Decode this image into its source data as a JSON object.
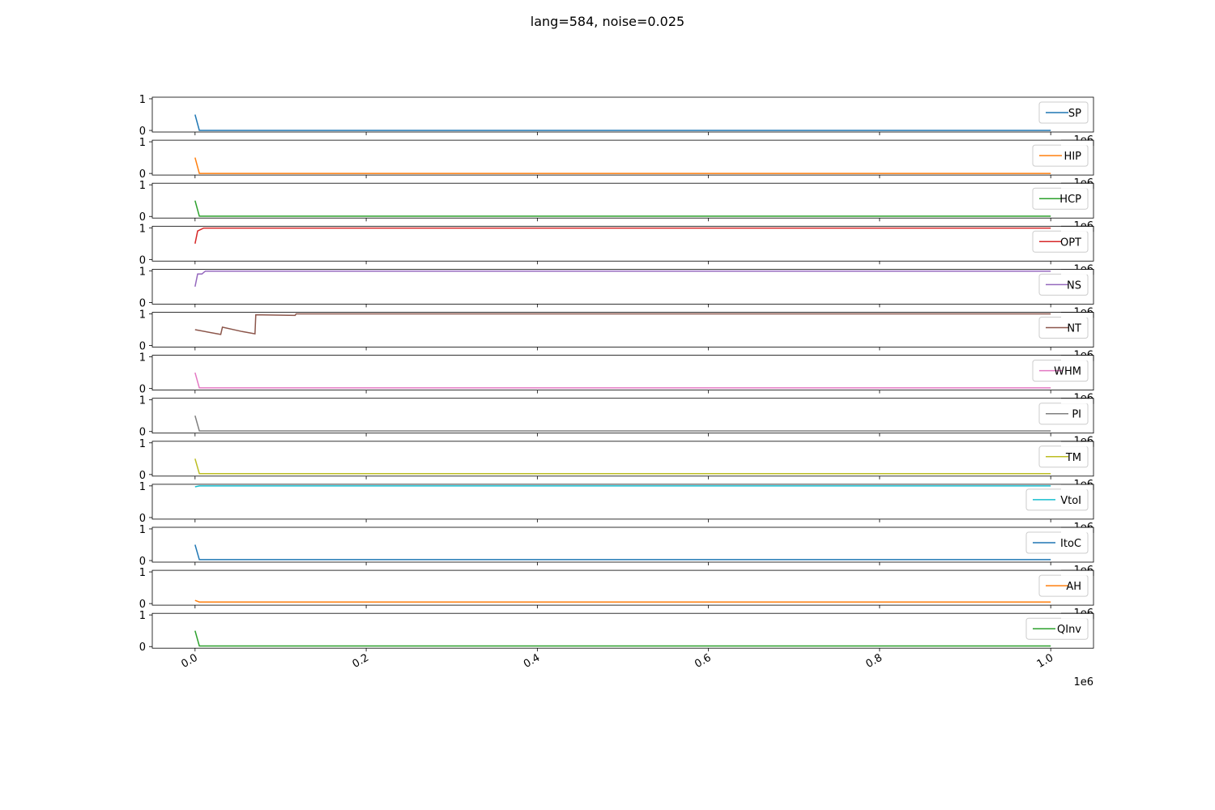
{
  "suptitle": "lang=584, noise=0.025",
  "chart_data": {
    "type": "line",
    "layout": "13 vertically stacked subplots sharing the x range, each with its own legend at upper right",
    "x_ticks": [
      "0.0",
      "0.2",
      "0.4",
      "0.6",
      "0.8",
      "1.0"
    ],
    "x_offset_label": "1e6",
    "x_range": [
      -50000,
      1050000
    ],
    "y_ticks": [
      "0",
      "1"
    ],
    "y_range": [
      -0.05,
      1.05
    ],
    "grid": false,
    "legend_position": "upper right",
    "series": [
      {
        "name": "SP",
        "color": "#1f77b4",
        "points": [
          [
            0,
            0.5
          ],
          [
            5000,
            0.0
          ],
          [
            1000000,
            0.0
          ]
        ]
      },
      {
        "name": "HIP",
        "color": "#ff7f0e",
        "points": [
          [
            0,
            0.5
          ],
          [
            5000,
            0.0
          ],
          [
            1000000,
            0.0
          ]
        ]
      },
      {
        "name": "HCP",
        "color": "#2ca02c",
        "points": [
          [
            0,
            0.5
          ],
          [
            5000,
            0.01
          ],
          [
            1000000,
            0.01
          ]
        ]
      },
      {
        "name": "OPT",
        "color": "#d62728",
        "points": [
          [
            0,
            0.5
          ],
          [
            3000,
            0.9
          ],
          [
            10000,
            0.99
          ],
          [
            1000000,
            0.99
          ]
        ]
      },
      {
        "name": "NS",
        "color": "#9467bd",
        "points": [
          [
            0,
            0.5
          ],
          [
            3000,
            0.9
          ],
          [
            8000,
            0.9
          ],
          [
            12000,
            0.99
          ],
          [
            1000000,
            0.99
          ]
        ]
      },
      {
        "name": "NT",
        "color": "#8c564b",
        "points": [
          [
            0,
            0.5
          ],
          [
            30000,
            0.35
          ],
          [
            32000,
            0.58
          ],
          [
            55000,
            0.44
          ],
          [
            70000,
            0.37
          ],
          [
            71000,
            0.97
          ],
          [
            117000,
            0.95
          ],
          [
            118000,
            1.0
          ],
          [
            1000000,
            1.0
          ]
        ]
      },
      {
        "name": "WHM",
        "color": "#e377c2",
        "points": [
          [
            0,
            0.5
          ],
          [
            5000,
            0.02
          ],
          [
            1000000,
            0.02
          ]
        ]
      },
      {
        "name": "PI",
        "color": "#7f7f7f",
        "points": [
          [
            0,
            0.5
          ],
          [
            5000,
            0.02
          ],
          [
            1000000,
            0.02
          ]
        ]
      },
      {
        "name": "TM",
        "color": "#bcbd22",
        "points": [
          [
            0,
            0.5
          ],
          [
            5000,
            0.03
          ],
          [
            1000000,
            0.03
          ]
        ]
      },
      {
        "name": "VtoI",
        "color": "#17becf",
        "points": [
          [
            0,
            0.97
          ],
          [
            5000,
            1.0
          ],
          [
            1000000,
            1.0
          ]
        ]
      },
      {
        "name": "ItoC",
        "color": "#1f77b4",
        "points": [
          [
            0,
            0.5
          ],
          [
            5000,
            0.03
          ],
          [
            1000000,
            0.03
          ]
        ]
      },
      {
        "name": "AH",
        "color": "#ff7f0e",
        "points": [
          [
            0,
            0.1
          ],
          [
            5000,
            0.05
          ],
          [
            1000000,
            0.05
          ]
        ]
      },
      {
        "name": "QInv",
        "color": "#2ca02c",
        "points": [
          [
            0,
            0.5
          ],
          [
            5000,
            0.02
          ],
          [
            1000000,
            0.02
          ]
        ]
      }
    ]
  }
}
